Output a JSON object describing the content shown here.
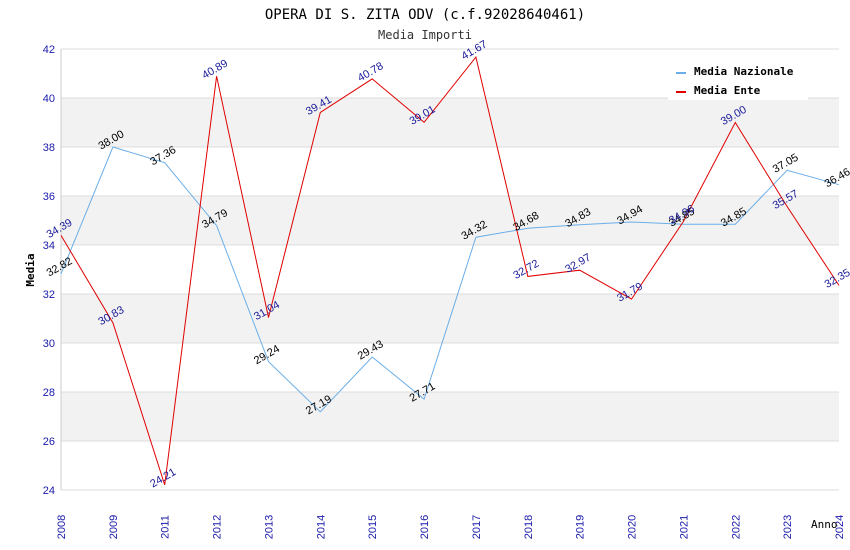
{
  "chart_data": {
    "type": "line",
    "title": "OPERA DI S. ZITA ODV (c.f.92028640461)",
    "subtitle": "Media Importi",
    "xlabel": "Anno",
    "ylabel": "Media",
    "ylim": [
      24,
      42
    ],
    "yticks": [
      "24",
      "26",
      "28",
      "30",
      "32",
      "34",
      "36",
      "38",
      "40",
      "42"
    ],
    "grid": true,
    "legend_position": "top-right",
    "categories": [
      "2008",
      "2009",
      "2011",
      "2012",
      "2013",
      "2014",
      "2015",
      "2016",
      "2017",
      "2018",
      "2019",
      "2020",
      "2021",
      "2022",
      "2023",
      "2024"
    ],
    "series": [
      {
        "name": "Media Nazionale",
        "color": "#6aaee8",
        "label_color": "#000000",
        "values": [
          32.82,
          38.0,
          37.36,
          34.79,
          29.24,
          27.19,
          29.43,
          27.71,
          34.32,
          34.68,
          34.83,
          34.94,
          34.85,
          34.85,
          37.05,
          36.46
        ],
        "labels": [
          "32.82",
          "38.00",
          "37.36",
          "34.79",
          "29.24",
          "27.19",
          "29.43",
          "27.71",
          "34.32",
          "34.68",
          "34.83",
          "34.94",
          "34.85",
          "34.85",
          "37.05",
          "36.46"
        ]
      },
      {
        "name": "Media Ente",
        "color": "#e00000",
        "label_color": "#1a1a9a",
        "values": [
          34.39,
          30.83,
          24.21,
          40.89,
          31.04,
          39.41,
          40.78,
          39.01,
          41.67,
          32.72,
          32.97,
          31.79,
          34.96,
          39.0,
          35.57,
          32.35
        ],
        "labels": [
          "34.39",
          "30.83",
          "24.21",
          "40.89",
          "31.04",
          "39.41",
          "40.78",
          "39.01",
          "41.67",
          "32.72",
          "32.97",
          "31.79",
          "34.96",
          "39.00",
          "35.57",
          "32.35"
        ]
      }
    ]
  }
}
